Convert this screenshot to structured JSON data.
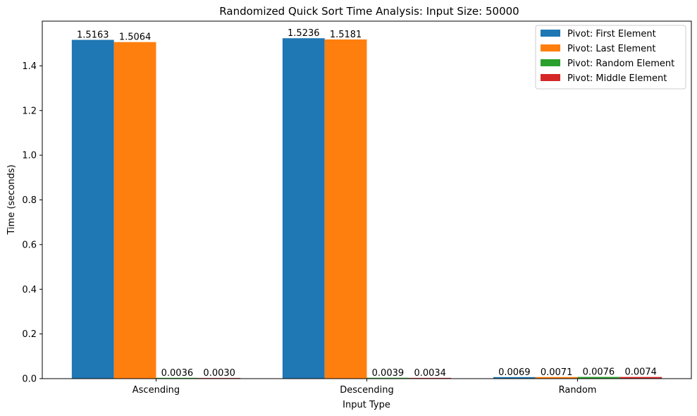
{
  "chart_data": {
    "type": "bar",
    "title": "Randomized Quick Sort Time Analysis: Input Size: 50000",
    "xlabel": "Input Type",
    "ylabel": "Time (seconds)",
    "categories": [
      "Ascending",
      "Descending",
      "Random"
    ],
    "ylim": [
      0,
      1.6
    ],
    "yticks": [
      0.0,
      0.2,
      0.4,
      0.6,
      0.8,
      1.0,
      1.2,
      1.4
    ],
    "ytick_labels": [
      "0.0",
      "0.2",
      "0.4",
      "0.6",
      "0.8",
      "1.0",
      "1.2",
      "1.4"
    ],
    "legend_position": "top-right",
    "grid": false,
    "series": [
      {
        "name": "Pivot: First Element",
        "color": "#1f77b4",
        "values": [
          1.5163,
          1.5236,
          0.0069
        ],
        "labels": [
          "1.5163",
          "1.5236",
          "0.0069"
        ]
      },
      {
        "name": "Pivot: Last Element",
        "color": "#ff7f0e",
        "values": [
          1.5064,
          1.5181,
          0.0071
        ],
        "labels": [
          "1.5064",
          "1.5181",
          "0.0071"
        ]
      },
      {
        "name": "Pivot: Random Element",
        "color": "#2ca02c",
        "values": [
          0.0036,
          0.0039,
          0.0076
        ],
        "labels": [
          "0.0036",
          "0.0039",
          "0.0076"
        ]
      },
      {
        "name": "Pivot: Middle Element",
        "color": "#d62728",
        "values": [
          0.003,
          0.0034,
          0.0074
        ],
        "labels": [
          "0.0030",
          "0.0034",
          "0.0074"
        ]
      }
    ]
  }
}
